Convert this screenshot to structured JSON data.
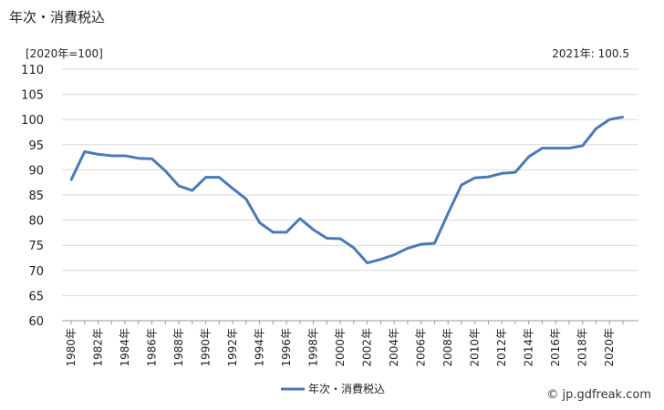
{
  "title": "年次・消費税込",
  "unit_label": "[2020年=100]",
  "latest_label": "2021年: 100.5",
  "credit": "© jp.gdfreak.com",
  "chart_data": {
    "type": "line",
    "x": [
      1980,
      1981,
      1982,
      1983,
      1984,
      1985,
      1986,
      1987,
      1988,
      1989,
      1990,
      1991,
      1992,
      1993,
      1994,
      1995,
      1996,
      1997,
      1998,
      1999,
      2000,
      2001,
      2002,
      2003,
      2004,
      2005,
      2006,
      2007,
      2008,
      2009,
      2010,
      2011,
      2012,
      2013,
      2014,
      2015,
      2016,
      2017,
      2018,
      2019,
      2020,
      2021
    ],
    "series": [
      {
        "name": "年次・消費税込",
        "color": "#4a7ab5",
        "values": [
          88.0,
          93.6,
          93.1,
          92.8,
          92.8,
          92.3,
          92.2,
          89.8,
          86.8,
          85.9,
          88.5,
          88.5,
          86.3,
          84.2,
          79.5,
          77.6,
          77.6,
          80.3,
          78.1,
          76.4,
          76.3,
          74.5,
          71.5,
          72.2,
          73.1,
          74.4,
          75.2,
          75.4,
          81.3,
          87.0,
          88.4,
          88.6,
          89.3,
          89.5,
          92.6,
          94.3,
          94.3,
          94.3,
          94.8,
          98.2,
          100.0,
          100.5
        ]
      }
    ],
    "ylim": [
      60,
      110
    ],
    "yticks": [
      "60",
      "65",
      "70",
      "75",
      "80",
      "85",
      "90",
      "95",
      "100",
      "105",
      "110"
    ],
    "xticks": [
      "1980年",
      "1982年",
      "1984年",
      "1986年",
      "1988年",
      "1990年",
      "1992年",
      "1994年",
      "1996年",
      "1998年",
      "2000年",
      "2002年",
      "2004年",
      "2006年",
      "2008年",
      "2010年",
      "2012年",
      "2014年",
      "2016年",
      "2018年",
      "2020年"
    ],
    "grid": "horizontal",
    "legend_position": "bottom-center"
  }
}
